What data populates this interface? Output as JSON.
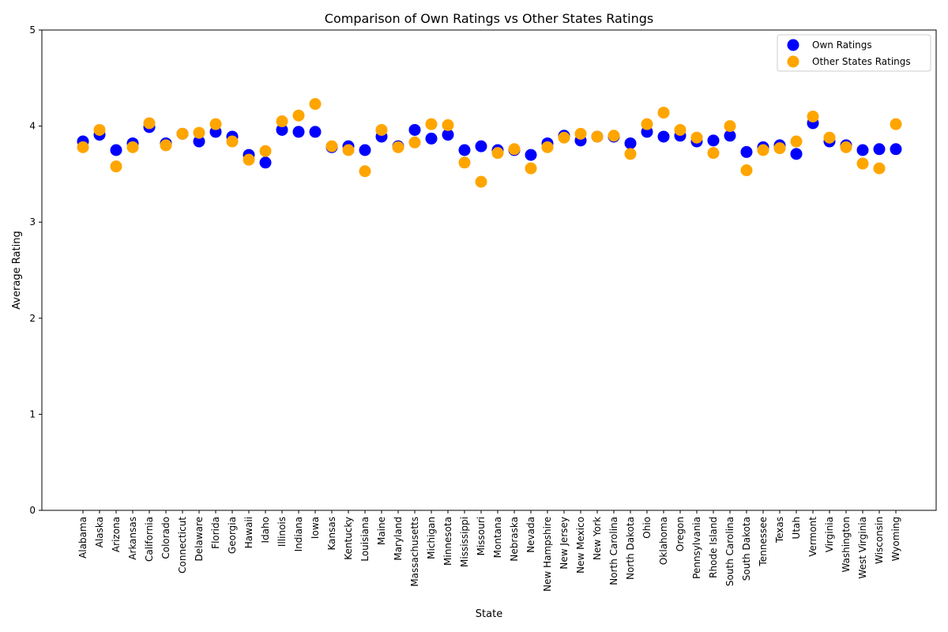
{
  "chart_data": {
    "type": "scatter",
    "title": "Comparison of Own Ratings vs Other States Ratings",
    "xlabel": "State",
    "ylabel": "Average Rating",
    "ylim": [
      0,
      5
    ],
    "yticks": [
      0,
      1,
      2,
      3,
      4,
      5
    ],
    "grid": false,
    "legend_position": "top-right",
    "categories": [
      "Alabama",
      "Alaska",
      "Arizona",
      "Arkansas",
      "California",
      "Colorado",
      "Connecticut",
      "Delaware",
      "Florida",
      "Georgia",
      "Hawaii",
      "Idaho",
      "Illinois",
      "Indiana",
      "Iowa",
      "Kansas",
      "Kentucky",
      "Louisiana",
      "Maine",
      "Maryland",
      "Massachusetts",
      "Michigan",
      "Minnesota",
      "Mississippi",
      "Missouri",
      "Montana",
      "Nebraska",
      "Nevada",
      "New Hampshire",
      "New Jersey",
      "New Mexico",
      "New York",
      "North Carolina",
      "North Dakota",
      "Ohio",
      "Oklahoma",
      "Oregon",
      "Pennsylvania",
      "Rhode Island",
      "South Carolina",
      "South Dakota",
      "Tennessee",
      "Texas",
      "Utah",
      "Vermont",
      "Virginia",
      "Washington",
      "West Virginia",
      "Wisconsin",
      "Wyoming"
    ],
    "series": [
      {
        "name": "Own Ratings",
        "color": "#0000ff",
        "values": [
          3.84,
          3.91,
          3.75,
          3.82,
          3.99,
          3.82,
          3.92,
          3.84,
          3.94,
          3.89,
          3.7,
          3.62,
          3.96,
          3.94,
          3.94,
          3.78,
          3.79,
          3.75,
          3.89,
          3.79,
          3.96,
          3.87,
          3.91,
          3.75,
          3.79,
          3.75,
          3.75,
          3.7,
          3.82,
          3.9,
          3.85,
          3.89,
          3.89,
          3.82,
          3.94,
          3.89,
          3.9,
          3.84,
          3.85,
          3.9,
          3.73,
          3.78,
          3.8,
          3.71,
          4.03,
          3.84,
          3.8,
          3.75,
          3.76,
          3.76
        ]
      },
      {
        "name": "Other States Ratings",
        "color": "#ffa500",
        "values": [
          3.78,
          3.96,
          3.58,
          3.78,
          4.03,
          3.8,
          3.92,
          3.93,
          4.02,
          3.84,
          3.65,
          3.74,
          4.05,
          4.11,
          4.23,
          3.79,
          3.75,
          3.53,
          3.96,
          3.78,
          3.83,
          4.02,
          4.01,
          3.62,
          3.42,
          3.72,
          3.76,
          3.56,
          3.78,
          3.88,
          3.92,
          3.89,
          3.9,
          3.71,
          4.02,
          4.14,
          3.96,
          3.88,
          3.72,
          4.0,
          3.54,
          3.75,
          3.77,
          3.84,
          4.1,
          3.88,
          3.78,
          3.61,
          3.56,
          4.02
        ]
      }
    ]
  }
}
